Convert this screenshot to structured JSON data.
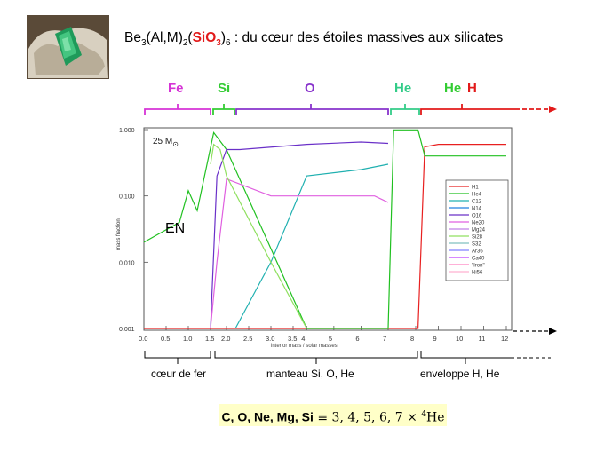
{
  "title": {
    "part1": "Be",
    "sub1": "3",
    "part2": "(Al,M)",
    "sub2": "2",
    "part3": "(",
    "red_main": "SiO",
    "red_sub": "3",
    "part4": ")",
    "sub3": "6",
    "part5": " : du cœur des étoiles massives aux silicates"
  },
  "zone_labels_top": [
    {
      "text": "Fe",
      "color": "#d633d6"
    },
    {
      "text": "Si",
      "color": "#33cc33"
    },
    {
      "text": "O",
      "color": "#8833cc"
    },
    {
      "text": "He",
      "color": "#33cc88"
    },
    {
      "text": "He",
      "color": "#33cc33"
    },
    {
      "text": "H",
      "color": "#e21a1a"
    }
  ],
  "zone_labels_bottom": [
    "cœur de fer",
    "manteau Si, O, He",
    "enveloppe H, He"
  ],
  "footer": {
    "elements": "C, O, Ne, Mg, Si",
    "formula": " ≡ 3, 4, 5, 6, 7 × ",
    "sup": "4",
    "tail": "He"
  },
  "colors": {
    "H1": "#e82020",
    "He4": "#20c020",
    "C12": "#20b0b0",
    "N14": "#2080e0",
    "O16": "#6a30c8",
    "Ne20": "#e060e0",
    "Mg24": "#c080e8",
    "Si28": "#90e060",
    "S32": "#80c0c0",
    "Ar36": "#8080ff",
    "Ca40": "#c040ff",
    "Iron": "#ff80c0",
    "Ni56": "#ffb0d0"
  },
  "chart_data": {
    "type": "line",
    "star_label": "25 M",
    "star_label_sub": "⊙",
    "annotation": "EN",
    "xlabel": "interior mass / solar masses",
    "ylabel": "mass fraction",
    "yscale": "log",
    "ylim": [
      0.001,
      1.0
    ],
    "y_ticks": [
      "1.000",
      "0.100",
      "0.010",
      "0.001"
    ],
    "x_ticks": [
      "0.0",
      "0.5",
      "1.0",
      "1.5",
      "2.0",
      "2.5",
      "3.0",
      "3.5",
      "4",
      "5",
      "6",
      "7",
      "8",
      "9",
      "10",
      "11",
      "12"
    ],
    "legend": [
      "H1",
      "He4",
      "C12",
      "N14",
      "O16",
      "Ne20",
      "Mg24",
      "Si28",
      "S32",
      "Ar36",
      "Ca40",
      "\"Iron\"",
      "Ni56"
    ],
    "legend_placement": "right",
    "series": [
      {
        "name": "H1",
        "x": [
          0,
          1.5,
          7.0,
          8.1,
          8.4,
          9,
          12
        ],
        "y": [
          0.001,
          0.001,
          0.001,
          0.001,
          0.55,
          0.6,
          0.6
        ]
      },
      {
        "name": "He4",
        "x": [
          0,
          0.8,
          1.0,
          1.2,
          1.6,
          2.0,
          4,
          7.0,
          7.2,
          8.1,
          8.4,
          12
        ],
        "y": [
          0.02,
          0.04,
          0.12,
          0.06,
          0.9,
          0.5,
          0.001,
          0.001,
          0.99,
          0.99,
          0.4,
          0.4
        ]
      },
      {
        "name": "C12",
        "x": [
          2.2,
          3,
          4,
          6,
          7.0
        ],
        "y": [
          0.001,
          0.01,
          0.2,
          0.25,
          0.3
        ]
      },
      {
        "name": "O16",
        "x": [
          1.5,
          1.7,
          2.0,
          2.3,
          4,
          6,
          7.0
        ],
        "y": [
          0.001,
          0.2,
          0.5,
          0.5,
          0.6,
          0.65,
          0.62
        ]
      },
      {
        "name": "Ne20",
        "x": [
          1.5,
          1.7,
          2.0,
          3,
          6.5,
          7.0
        ],
        "y": [
          0.001,
          0.01,
          0.18,
          0.1,
          0.1,
          0.08
        ]
      },
      {
        "name": "Si28",
        "x": [
          1.5,
          1.6,
          1.8,
          2.0,
          3,
          4
        ],
        "y": [
          0.3,
          0.6,
          0.5,
          0.2,
          0.01,
          0.001
        ]
      }
    ]
  }
}
